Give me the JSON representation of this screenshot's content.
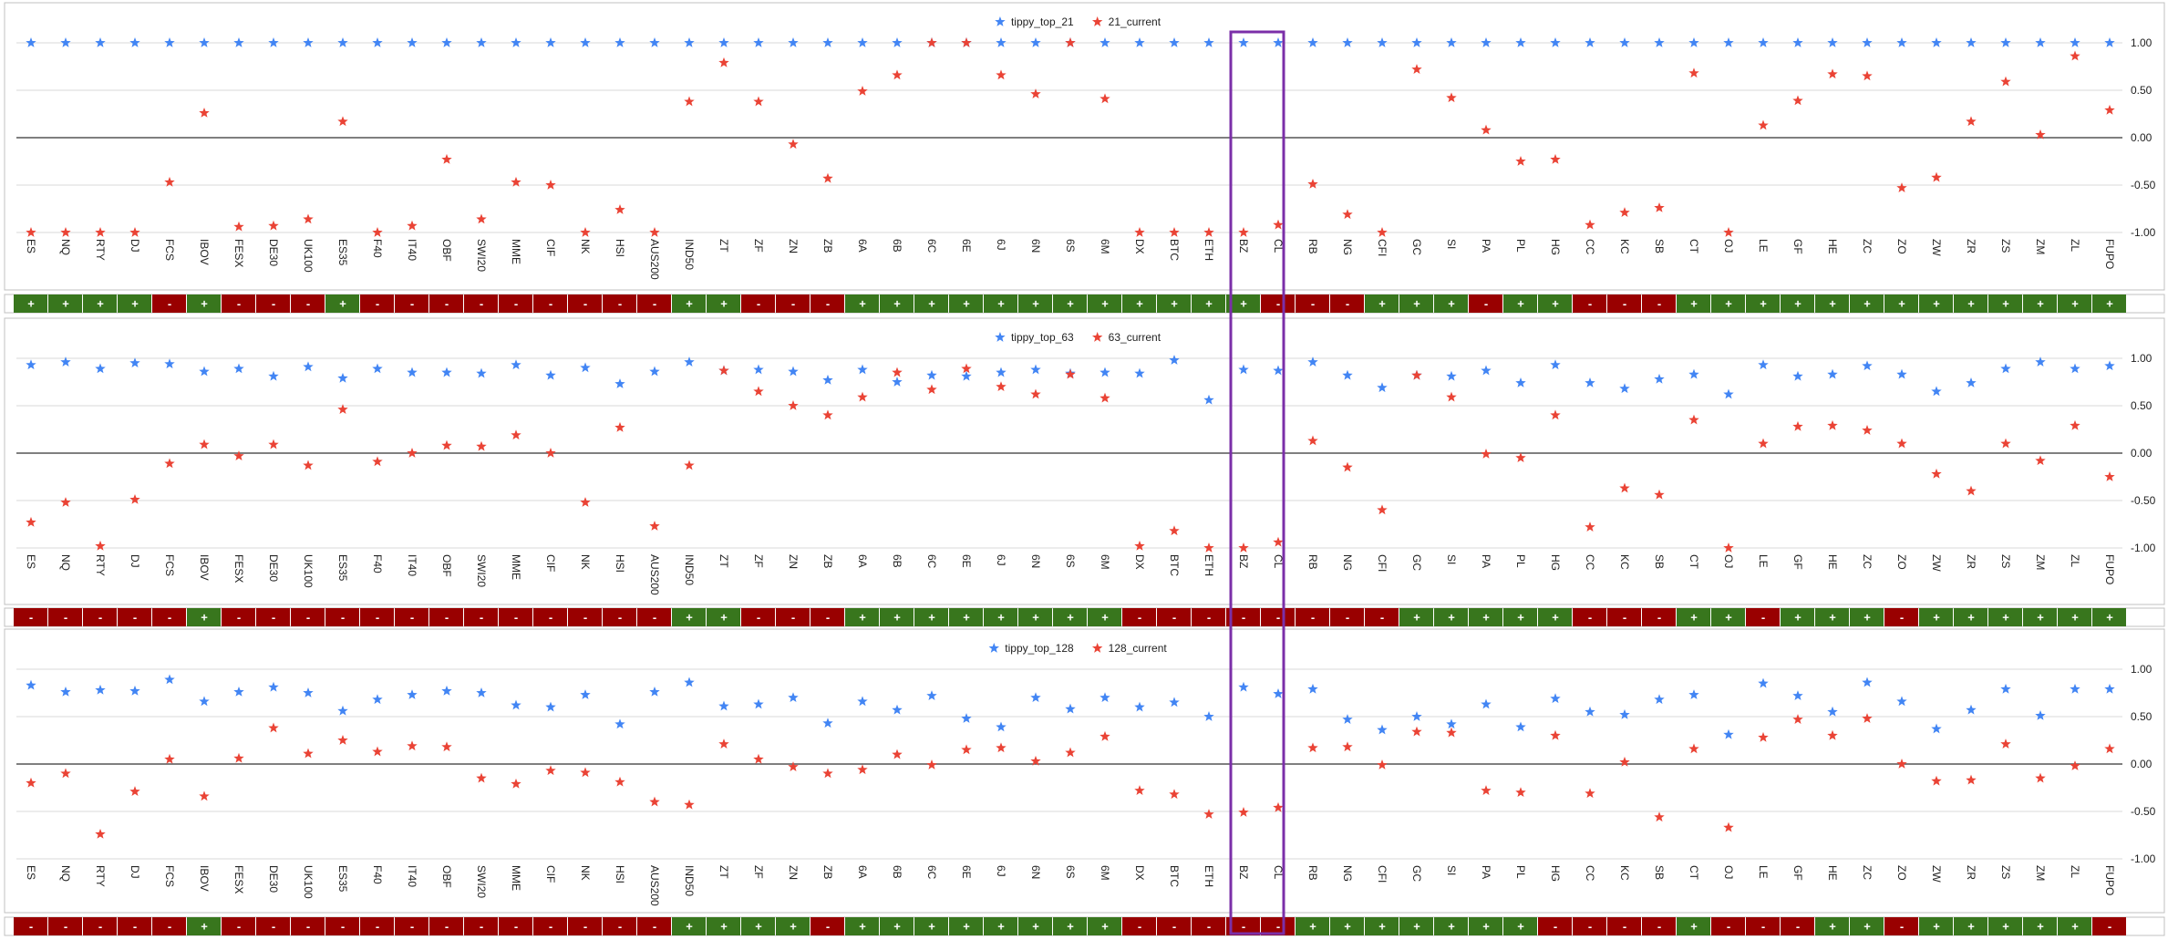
{
  "sign_colors": {
    "+": "#38761d",
    "-": "#990000"
  },
  "chart_data": [
    {
      "type": "scatter",
      "categories": [
        "ES",
        "NQ",
        "RTY",
        "DJ",
        "FCS",
        "IBOV",
        "FESX",
        "DE30",
        "UK100",
        "ES35",
        "F40",
        "IT40",
        "OBF",
        "SWI20",
        "MME",
        "CIF",
        "NK",
        "HSI",
        "AUS200",
        "IND50",
        "ZT",
        "ZF",
        "ZN",
        "ZB",
        "6A",
        "6B",
        "6C",
        "6E",
        "6J",
        "6N",
        "6S",
        "6M",
        "DX",
        "BTC",
        "ETH",
        "BZ",
        "CL",
        "RB",
        "NG",
        "CFI",
        "GC",
        "SI",
        "PA",
        "PL",
        "HG",
        "CC",
        "KC",
        "SB",
        "CT",
        "OJ",
        "LE",
        "GF",
        "HE",
        "ZC",
        "ZO",
        "ZW",
        "ZR",
        "ZS",
        "ZM",
        "ZL",
        "FUPO"
      ],
      "series": [
        {
          "name": "tippy_top_21",
          "color": "#4285f4",
          "values": [
            1,
            1,
            1,
            1,
            1,
            1,
            1,
            1,
            1,
            1,
            1,
            1,
            1,
            1,
            1,
            1,
            1,
            1,
            1,
            1,
            1,
            1,
            1,
            1,
            1,
            1,
            1,
            1,
            1,
            1,
            1,
            1,
            1,
            1,
            1,
            1,
            1,
            1,
            1,
            1,
            1,
            1,
            1,
            1,
            1,
            1,
            1,
            1,
            1,
            1,
            1,
            1,
            1,
            1,
            1,
            1,
            1,
            1,
            1,
            1,
            1
          ]
        },
        {
          "name": "21_current",
          "color": "#ea4335",
          "values": [
            -1,
            -1,
            -1,
            -1,
            -0.47,
            0.26,
            -0.94,
            -0.93,
            -0.86,
            0.17,
            -1,
            -0.93,
            -0.23,
            -0.86,
            -0.47,
            -0.5,
            -1,
            -0.76,
            -1,
            0.38,
            0.79,
            0.38,
            -0.07,
            -0.43,
            0.49,
            0.66,
            1,
            1,
            0.66,
            0.46,
            1,
            0.41,
            -1,
            -1,
            -1,
            -1,
            -0.92,
            -0.49,
            -0.81,
            -1,
            0.72,
            0.42,
            0.08,
            -0.25,
            -0.23,
            -0.92,
            -0.79,
            -0.74,
            0.68,
            -1,
            0.13,
            0.39,
            0.67,
            0.65,
            -0.53,
            -0.42,
            0.17,
            0.59,
            0.03,
            0.86,
            0.29
          ]
        }
      ],
      "ylim": [
        -1.1,
        1.15
      ],
      "yticks": [
        {
          "value": 1,
          "label": "1.00"
        },
        {
          "value": 0.5,
          "label": "0.50"
        },
        {
          "value": 0,
          "label": "0.00"
        },
        {
          "value": -0.5,
          "label": "-0.50"
        },
        {
          "value": -1,
          "label": "-1.00"
        }
      ],
      "grid": true,
      "legend": "top",
      "signs": [
        "+",
        "+",
        "+",
        "+",
        "-",
        "+",
        "-",
        "-",
        "-",
        "+",
        "-",
        "-",
        "-",
        "-",
        "-",
        "-",
        "-",
        "-",
        "-",
        "+",
        "+",
        "-",
        "-",
        "-",
        "+",
        "+",
        "+",
        "+",
        "+",
        "+",
        "+",
        "+",
        "+",
        "+",
        "+",
        "+",
        "-",
        "-",
        "-",
        "+",
        "+",
        "+",
        "-",
        "+",
        "+",
        "-",
        "-",
        "-",
        "+",
        "+",
        "+",
        "+",
        "+",
        "+",
        "+",
        "+",
        "+",
        "+",
        "+",
        "+",
        "+"
      ]
    },
    {
      "type": "scatter",
      "categories": [
        "ES",
        "NQ",
        "RTY",
        "DJ",
        "FCS",
        "IBOV",
        "FESX",
        "DE30",
        "UK100",
        "ES35",
        "F40",
        "IT40",
        "OBF",
        "SWI20",
        "MME",
        "CIF",
        "NK",
        "HSI",
        "AUS200",
        "IND50",
        "ZT",
        "ZF",
        "ZN",
        "ZB",
        "6A",
        "6B",
        "6C",
        "6E",
        "6J",
        "6N",
        "6S",
        "6M",
        "DX",
        "BTC",
        "ETH",
        "BZ",
        "CL",
        "RB",
        "NG",
        "CFI",
        "GC",
        "SI",
        "PA",
        "PL",
        "HG",
        "CC",
        "KC",
        "SB",
        "CT",
        "OJ",
        "LE",
        "GF",
        "HE",
        "ZC",
        "ZO",
        "ZW",
        "ZR",
        "ZS",
        "ZM",
        "ZL",
        "FUPO"
      ],
      "series": [
        {
          "name": "tippy_top_63",
          "color": "#4285f4",
          "values": [
            0.93,
            0.96,
            0.89,
            0.95,
            0.94,
            0.86,
            0.89,
            0.81,
            0.91,
            0.79,
            0.89,
            0.85,
            0.85,
            0.84,
            0.93,
            0.82,
            0.9,
            0.73,
            0.86,
            0.96,
            0.87,
            0.88,
            0.86,
            0.77,
            0.88,
            0.75,
            0.82,
            0.81,
            0.85,
            0.88,
            0.84,
            0.85,
            0.84,
            0.98,
            0.56,
            0.88,
            0.87,
            0.96,
            0.82,
            0.69,
            0.82,
            0.81,
            0.87,
            0.74,
            0.93,
            0.74,
            0.68,
            0.78,
            0.83,
            0.62,
            0.93,
            0.81,
            0.83,
            0.92,
            0.83,
            0.65,
            0.74,
            0.89,
            0.96,
            0.89,
            0.92
          ]
        },
        {
          "name": "63_current",
          "color": "#ea4335",
          "values": [
            -0.73,
            -0.52,
            -0.98,
            -0.49,
            -0.11,
            0.09,
            -0.03,
            0.09,
            -0.13,
            0.46,
            -0.09,
            0,
            0.08,
            0.07,
            0.19,
            0,
            -0.52,
            0.27,
            -0.77,
            -0.13,
            0.87,
            0.65,
            0.5,
            0.4,
            0.59,
            0.85,
            0.67,
            0.89,
            0.7,
            0.62,
            0.83,
            0.58,
            -0.98,
            -0.82,
            -1,
            -1,
            -0.94,
            0.13,
            -0.15,
            -0.6,
            0.82,
            0.59,
            -0.01,
            -0.05,
            0.4,
            -0.78,
            -0.37,
            -0.44,
            0.35,
            -1,
            0.1,
            0.28,
            0.29,
            0.24,
            0.1,
            -0.22,
            -0.4,
            0.1,
            -0.08,
            0.29,
            -0.25
          ]
        }
      ],
      "ylim": [
        -1.1,
        1.15
      ],
      "yticks": [
        {
          "value": 1,
          "label": "1.00"
        },
        {
          "value": 0.5,
          "label": "0.50"
        },
        {
          "value": 0,
          "label": "0.00"
        },
        {
          "value": -0.5,
          "label": "-0.50"
        },
        {
          "value": -1,
          "label": "-1.00"
        }
      ],
      "grid": true,
      "legend": "top",
      "signs": [
        "-",
        "-",
        "-",
        "-",
        "-",
        "+",
        "-",
        "-",
        "-",
        "-",
        "-",
        "-",
        "-",
        "-",
        "-",
        "-",
        "-",
        "-",
        "-",
        "+",
        "+",
        "-",
        "-",
        "-",
        "+",
        "+",
        "+",
        "+",
        "+",
        "+",
        "+",
        "+",
        "-",
        "-",
        "-",
        "-",
        "-",
        "-",
        "-",
        "-",
        "+",
        "+",
        "+",
        "+",
        "+",
        "-",
        "-",
        "-",
        "+",
        "+",
        "-",
        "+",
        "+",
        "+",
        "-",
        "+",
        "+",
        "+",
        "+",
        "+",
        "+"
      ]
    },
    {
      "type": "scatter",
      "categories": [
        "ES",
        "NQ",
        "RTY",
        "DJ",
        "FCS",
        "IBOV",
        "FESX",
        "DE30",
        "UK100",
        "ES35",
        "F40",
        "IT40",
        "OBF",
        "SWI20",
        "MME",
        "CIF",
        "NK",
        "HSI",
        "AUS200",
        "IND50",
        "ZT",
        "ZF",
        "ZN",
        "ZB",
        "6A",
        "6B",
        "6C",
        "6E",
        "6J",
        "6N",
        "6S",
        "6M",
        "DX",
        "BTC",
        "ETH",
        "BZ",
        "CL",
        "RB",
        "NG",
        "CFI",
        "GC",
        "SI",
        "PA",
        "PL",
        "HG",
        "CC",
        "KC",
        "SB",
        "CT",
        "OJ",
        "LE",
        "GF",
        "HE",
        "ZC",
        "ZO",
        "ZW",
        "ZR",
        "ZS",
        "ZM",
        "ZL",
        "FUPO"
      ],
      "series": [
        {
          "name": "tippy_top_128",
          "color": "#4285f4",
          "values": [
            0.83,
            0.76,
            0.78,
            0.77,
            0.89,
            0.66,
            0.76,
            0.81,
            0.75,
            0.56,
            0.68,
            0.73,
            0.77,
            0.75,
            0.62,
            0.6,
            0.73,
            0.42,
            0.76,
            0.86,
            0.61,
            0.63,
            0.7,
            0.43,
            0.66,
            0.57,
            0.72,
            0.48,
            0.39,
            0.7,
            0.58,
            0.7,
            0.6,
            0.65,
            0.5,
            0.81,
            0.74,
            0.79,
            0.47,
            0.36,
            0.5,
            0.42,
            0.63,
            0.39,
            0.69,
            0.55,
            0.52,
            0.68,
            0.73,
            0.31,
            0.85,
            0.72,
            0.55,
            0.86,
            0.66,
            0.37,
            0.57,
            0.79,
            0.51,
            0.79,
            0.79
          ]
        },
        {
          "name": "128_current",
          "color": "#ea4335",
          "values": [
            -0.2,
            -0.1,
            -0.74,
            -0.29,
            0.05,
            -0.34,
            0.06,
            0.38,
            0.11,
            0.25,
            0.13,
            0.19,
            0.18,
            -0.15,
            -0.21,
            -0.07,
            -0.09,
            -0.19,
            -0.4,
            -0.43,
            0.21,
            0.05,
            -0.03,
            -0.1,
            -0.06,
            0.1,
            -0.01,
            0.15,
            0.17,
            0.03,
            0.12,
            0.29,
            -0.28,
            -0.32,
            -0.53,
            -0.51,
            -0.46,
            0.17,
            0.18,
            -0.01,
            0.34,
            0.33,
            -0.28,
            -0.3,
            0.3,
            -0.31,
            0.02,
            -0.56,
            0.16,
            -0.67,
            0.28,
            0.47,
            0.3,
            0.48,
            0,
            -0.18,
            -0.17,
            0.21,
            -0.15,
            -0.02,
            0.16
          ]
        }
      ],
      "ylim": [
        -1.1,
        1.15
      ],
      "yticks": [
        {
          "value": 1,
          "label": "1.00"
        },
        {
          "value": 0.5,
          "label": "0.50"
        },
        {
          "value": 0,
          "label": "0.00"
        },
        {
          "value": -0.5,
          "label": "-0.50"
        },
        {
          "value": -1,
          "label": "-1.00"
        }
      ],
      "grid": true,
      "legend": "top",
      "signs": [
        "-",
        "-",
        "-",
        "-",
        "-",
        "+",
        "-",
        "-",
        "-",
        "-",
        "-",
        "-",
        "-",
        "-",
        "-",
        "-",
        "-",
        "-",
        "-",
        "+",
        "+",
        "+",
        "+",
        "-",
        "+",
        "+",
        "+",
        "+",
        "+",
        "+",
        "+",
        "+",
        "-",
        "-",
        "-",
        "-",
        "-",
        "+",
        "+",
        "+",
        "+",
        "+",
        "+",
        "+",
        "-",
        "-",
        "-",
        "-",
        "+",
        "-",
        "-",
        "-",
        "+",
        "+",
        "-",
        "+",
        "+",
        "+",
        "+",
        "+",
        "-"
      ]
    }
  ]
}
